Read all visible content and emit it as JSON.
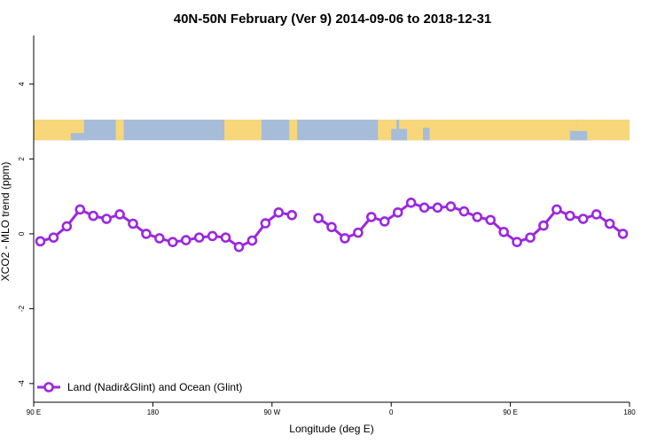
{
  "chart_data": {
    "type": "line",
    "title": "40N-50N February (Ver 9)   2014-09-06 to 2018-12-31",
    "xlabel": "Longitude (deg E)",
    "ylabel": "XCO2 - MLO trend (ppm)",
    "xlim": [
      90,
      540
    ],
    "ylim": [
      -4.5,
      5.3
    ],
    "x_ticks": [
      {
        "value": 90,
        "label": "90 E"
      },
      {
        "value": 180,
        "label": "180"
      },
      {
        "value": 270,
        "label": "90 W"
      },
      {
        "value": 360,
        "label": "0"
      },
      {
        "value": 450,
        "label": "90 E"
      },
      {
        "value": 540,
        "label": "180"
      }
    ],
    "y_ticks": [
      {
        "value": 4,
        "label": "4"
      },
      {
        "value": 2,
        "label": "2"
      },
      {
        "value": 0,
        "label": "0"
      },
      {
        "value": -2,
        "label": "-2"
      },
      {
        "value": -4,
        "label": "-4"
      }
    ],
    "grid": false,
    "map_strip": {
      "ymin": 2.5,
      "ymax": 3.05,
      "land_color": "#f7d77a",
      "ocean_color": "#a7bcd9"
    },
    "legend": {
      "position": "bottom-left"
    },
    "series": [
      {
        "name": "Land (Nadir&Glint) and Ocean (Glint)",
        "color": "#9b27e0",
        "segments": [
          {
            "x": [
              95,
              105,
              115,
              125,
              135,
              145,
              155,
              165,
              175,
              185,
              195,
              205,
              215,
              225,
              235,
              245,
              255,
              265,
              275,
              285,
              295
            ],
            "y": [
              -0.2,
              -0.1,
              0.2,
              0.65,
              0.48,
              0.4,
              0.52,
              0.27,
              0.0,
              -0.12,
              -0.22,
              -0.17,
              -0.1,
              -0.06,
              -0.1,
              -0.35,
              -0.18,
              0.28,
              0.57,
              0.5,
              null
            ]
          },
          {
            "x": [
              305,
              315,
              325,
              335,
              345,
              355,
              365,
              375,
              385,
              395,
              405,
              415,
              425,
              435,
              445,
              455,
              465,
              475,
              485,
              495,
              505,
              515,
              525,
              535
            ],
            "y": [
              0.42,
              0.18,
              -0.12,
              0.03,
              0.45,
              0.33,
              0.57,
              0.83,
              0.7,
              0.7,
              0.73,
              0.6,
              0.45,
              0.37,
              0.05,
              -0.22,
              -0.1,
              0.22,
              0.65,
              0.48,
              0.4,
              0.52,
              0.27,
              0.0
            ]
          }
        ]
      }
    ]
  }
}
